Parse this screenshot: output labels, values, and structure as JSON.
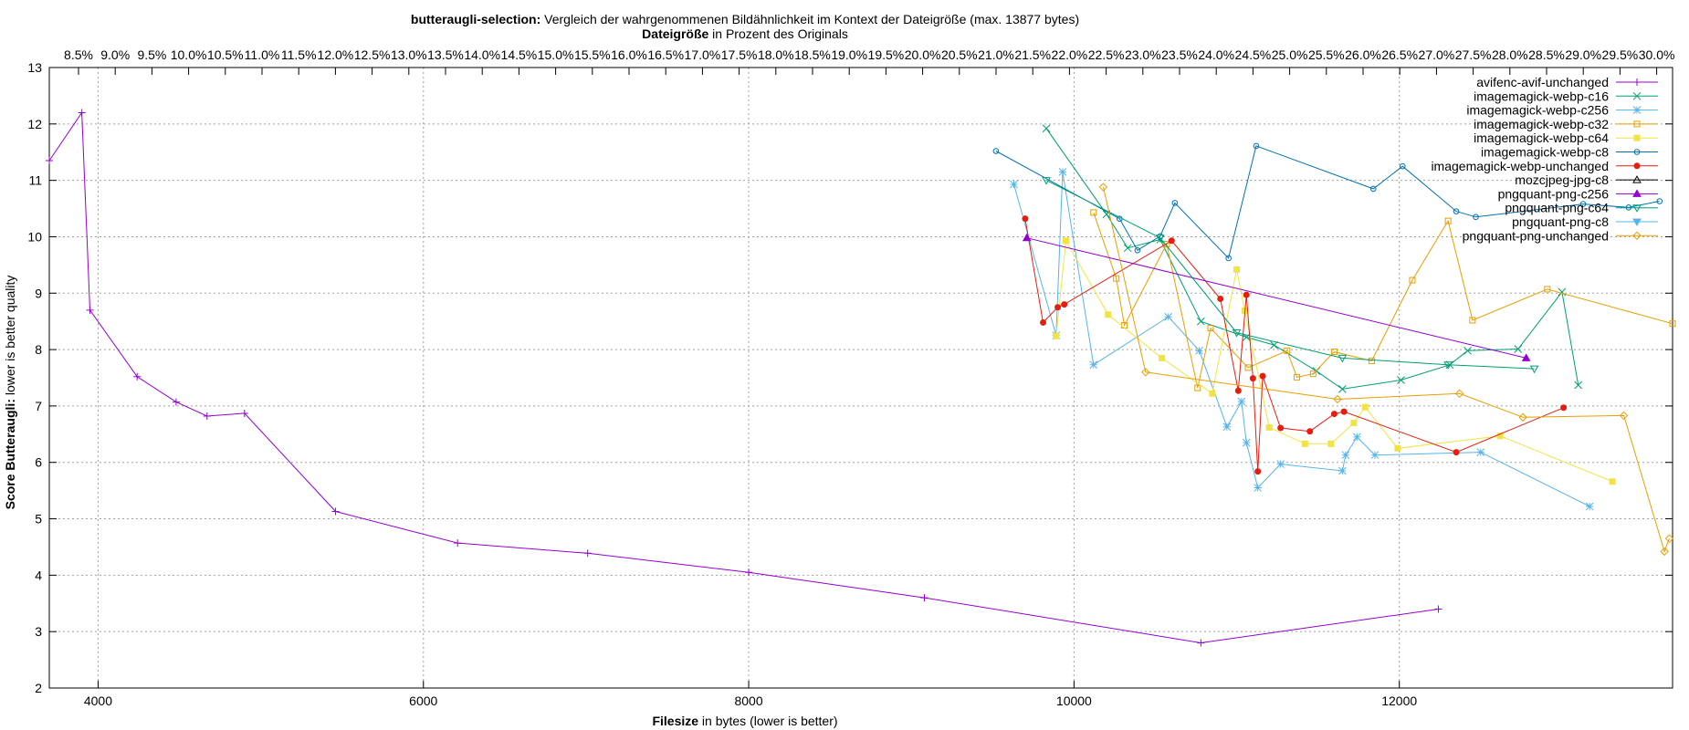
{
  "chart_data": {
    "type": "line",
    "title_bold": "butteraugli-selection:",
    "title_rest": " Vergleich der wahrgenommenen Bildähnlichkeit im Kontext der Dateigröße (max. 13877 bytes)",
    "x2label_bold": "Dateigröße",
    "x2label_rest": " in Prozent des Originals",
    "xlabel_bold": "Filesize",
    "xlabel_rest": " in bytes (lower is better)",
    "ylabel_bold": "Score Butteraugli:",
    "ylabel_rest": " lower is better quality",
    "xlim": [
      3700,
      13680
    ],
    "ylim": [
      2,
      13
    ],
    "grid": true,
    "legend_position": "top-right",
    "x_ticks": [
      4000,
      6000,
      8000,
      10000,
      12000
    ],
    "y_ticks": [
      2,
      3,
      4,
      5,
      6,
      7,
      8,
      9,
      10,
      11,
      12,
      13
    ],
    "x2_ticks": [
      "8.5%",
      "9.0%",
      "9.5%",
      "10.0%",
      "10.5%",
      "11.0%",
      "11.5%",
      "12.0%",
      "12.5%",
      "13.0%",
      "13.5%",
      "14.0%",
      "14.5%",
      "15.0%",
      "15.5%",
      "16.0%",
      "16.5%",
      "17.0%",
      "17.5%",
      "18.0%",
      "18.5%",
      "19.0%",
      "19.5%",
      "20.0%",
      "20.5%",
      "21.0%",
      "21.5%",
      "22.0%",
      "22.5%",
      "23.0%",
      "23.5%",
      "24.0%",
      "24.5%",
      "25.0%",
      "25.5%",
      "26.0%",
      "26.5%",
      "27.0%",
      "27.5%",
      "28.0%",
      "28.5%",
      "29.0%",
      "29.5%",
      "30.0%"
    ],
    "series": [
      {
        "name": "avifenc-avif-unchanged",
        "color": "#9400d3",
        "marker": "plus",
        "points": [
          [
            3700,
            11.35
          ],
          [
            3900,
            12.2
          ],
          [
            3950,
            8.7
          ],
          [
            4240,
            7.52
          ],
          [
            4480,
            7.07
          ],
          [
            4670,
            6.82
          ],
          [
            4900,
            6.87
          ],
          [
            5460,
            5.13
          ],
          [
            6210,
            4.57
          ],
          [
            7010,
            4.39
          ],
          [
            8000,
            4.05
          ],
          [
            9080,
            3.6
          ],
          [
            10780,
            2.8
          ],
          [
            12240,
            3.4
          ]
        ]
      },
      {
        "name": "imagemagick-webp-c16",
        "color": "#009e73",
        "marker": "x",
        "points": [
          [
            9830,
            11.92
          ],
          [
            10200,
            10.4
          ],
          [
            10330,
            9.8
          ],
          [
            10530,
            9.95
          ],
          [
            10780,
            8.5
          ],
          [
            11060,
            8.22
          ],
          [
            11230,
            8.08
          ],
          [
            11490,
            7.62
          ],
          [
            11650,
            7.3
          ],
          [
            12010,
            7.46
          ],
          [
            12310,
            7.73
          ],
          [
            12420,
            7.98
          ],
          [
            12730,
            8.01
          ],
          [
            13000,
            9.02
          ],
          [
            13100,
            7.37
          ]
        ]
      },
      {
        "name": "imagemagick-webp-c256",
        "color": "#56b4e9",
        "marker": "star",
        "points": [
          [
            9630,
            10.93
          ],
          [
            9890,
            8.25
          ],
          [
            9930,
            11.15
          ],
          [
            10120,
            7.73
          ],
          [
            10580,
            8.58
          ],
          [
            10770,
            7.98
          ],
          [
            10940,
            6.63
          ],
          [
            11030,
            7.08
          ],
          [
            11060,
            6.35
          ],
          [
            11130,
            5.55
          ],
          [
            11270,
            5.97
          ],
          [
            11650,
            5.85
          ],
          [
            11670,
            6.13
          ],
          [
            11740,
            6.45
          ],
          [
            11850,
            6.13
          ],
          [
            12500,
            6.18
          ],
          [
            13170,
            5.22
          ]
        ]
      },
      {
        "name": "imagemagick-webp-c32",
        "color": "#e69f00",
        "marker": "square",
        "points": [
          [
            10120,
            10.43
          ],
          [
            10260,
            9.26
          ],
          [
            10310,
            8.43
          ],
          [
            10570,
            9.87
          ],
          [
            10760,
            7.32
          ],
          [
            10840,
            8.38
          ],
          [
            11070,
            7.68
          ],
          [
            11310,
            7.98
          ],
          [
            11370,
            7.51
          ],
          [
            11470,
            7.57
          ],
          [
            11600,
            7.96
          ],
          [
            11830,
            7.8
          ],
          [
            12080,
            9.23
          ],
          [
            12300,
            10.28
          ],
          [
            12450,
            8.52
          ],
          [
            12910,
            9.07
          ],
          [
            13680,
            8.46
          ]
        ]
      },
      {
        "name": "imagemagick-webp-c64",
        "color": "#f0e442",
        "marker": "fsquare",
        "points": [
          [
            9890,
            8.24
          ],
          [
            9950,
            9.93
          ],
          [
            10210,
            8.62
          ],
          [
            10540,
            7.85
          ],
          [
            10850,
            7.22
          ],
          [
            11000,
            9.42
          ],
          [
            11050,
            8.69
          ],
          [
            11200,
            6.62
          ],
          [
            11420,
            6.33
          ],
          [
            11580,
            6.33
          ],
          [
            11720,
            6.7
          ],
          [
            11790,
            6.98
          ],
          [
            11990,
            6.25
          ],
          [
            12620,
            6.47
          ],
          [
            13310,
            5.66
          ]
        ]
      },
      {
        "name": "imagemagick-webp-c8",
        "color": "#0072b2",
        "marker": "ocircle",
        "points": [
          [
            9520,
            11.52
          ],
          [
            10280,
            10.32
          ],
          [
            10390,
            9.76
          ],
          [
            10530,
            10.01
          ],
          [
            10620,
            10.6
          ],
          [
            10950,
            9.62
          ],
          [
            11120,
            11.61
          ],
          [
            11840,
            10.85
          ],
          [
            12020,
            11.25
          ],
          [
            12350,
            10.45
          ],
          [
            12470,
            10.35
          ],
          [
            13130,
            10.58
          ],
          [
            13410,
            10.52
          ],
          [
            13600,
            10.63
          ]
        ]
      },
      {
        "name": "imagemagick-webp-unchanged",
        "color": "#e51e10",
        "marker": "fcircle",
        "points": [
          [
            9700,
            10.32
          ],
          [
            9810,
            8.48
          ],
          [
            9900,
            8.75
          ],
          [
            9940,
            8.8
          ],
          [
            10600,
            9.93
          ],
          [
            10900,
            8.9
          ],
          [
            11010,
            7.27
          ],
          [
            11060,
            8.97
          ],
          [
            11100,
            7.49
          ],
          [
            11130,
            5.84
          ],
          [
            11160,
            7.53
          ],
          [
            11270,
            6.61
          ],
          [
            11450,
            6.55
          ],
          [
            11600,
            6.86
          ],
          [
            11660,
            6.9
          ],
          [
            12350,
            6.18
          ],
          [
            13010,
            6.97
          ]
        ]
      },
      {
        "name": "mozcjpeg-jpg-c8",
        "color": "#000000",
        "marker": "otriangle",
        "points": []
      },
      {
        "name": "pngquant-png-c256",
        "color": "#9400d3",
        "marker": "ftriangle",
        "points": [
          [
            9710,
            9.98
          ],
          [
            12780,
            7.85
          ]
        ]
      },
      {
        "name": "pngquant-png-c64",
        "color": "#009e73",
        "marker": "odtriangle",
        "points": [
          [
            9830,
            11.0
          ],
          [
            10530,
            9.98
          ],
          [
            11000,
            8.3
          ],
          [
            11650,
            7.85
          ],
          [
            12300,
            7.73
          ],
          [
            12830,
            7.66
          ]
        ]
      },
      {
        "name": "pngquant-png-c8",
        "color": "#56b4e9",
        "marker": "fdtriangle",
        "points": []
      },
      {
        "name": "pngquant-png-unchanged",
        "color": "#e69f00",
        "marker": "odiamond",
        "points": [
          [
            10180,
            10.88
          ],
          [
            10440,
            7.6
          ],
          [
            11620,
            7.12
          ],
          [
            12370,
            7.22
          ],
          [
            12760,
            6.8
          ],
          [
            13380,
            6.83
          ],
          [
            13630,
            4.42
          ],
          [
            13660,
            4.65
          ]
        ]
      }
    ]
  }
}
